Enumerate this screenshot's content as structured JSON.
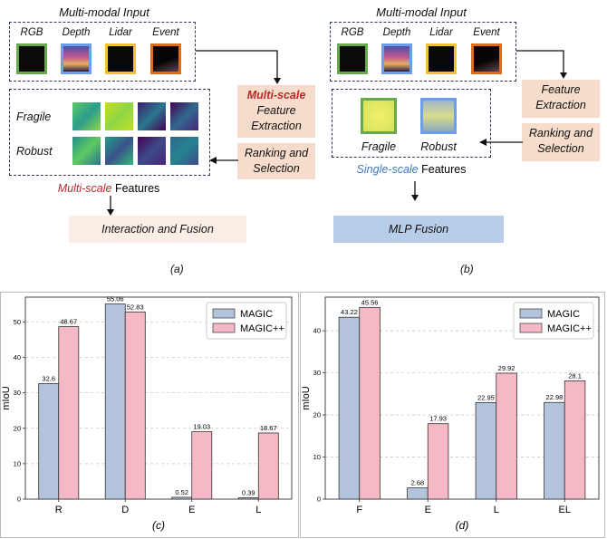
{
  "left_diagram": {
    "input_title": "Multi-modal Input",
    "modalities": [
      "RGB",
      "Depth",
      "Lidar",
      "Event"
    ],
    "rows": [
      "Fragile",
      "Robust"
    ],
    "extraction_word": "Multi-scale",
    "extraction_rest": "Feature Extraction",
    "ranking": "Ranking and Selection",
    "features_word": "Multi-scale",
    "features_rest": " Features",
    "fusion": "Interaction and Fusion",
    "caption": "(a)"
  },
  "right_diagram": {
    "input_title": "Multi-modal Input",
    "modalities": [
      "RGB",
      "Depth",
      "Lidar",
      "Event"
    ],
    "extraction": "Feature Extraction",
    "ranking": "Ranking and Selection",
    "fragile": "Fragile",
    "robust": "Robust",
    "features_word": "Single-scale",
    "features_rest": " Features",
    "fusion": "MLP Fusion",
    "caption": "(b)"
  },
  "colors": {
    "rgb": "#6aa84f",
    "depth": "#6d9eeb",
    "lidar": "#f1c232",
    "event": "#e06c1a",
    "magic": "#b4c3dc",
    "magicpp": "#f5b9c6",
    "red_accent": "#b8282a",
    "blue_accent": "#3d79b8"
  },
  "chart_data": [
    {
      "type": "bar",
      "caption": "(c)",
      "categories": [
        "R",
        "D",
        "E",
        "L"
      ],
      "series": [
        {
          "name": "MAGIC",
          "values": [
            32.6,
            55.06,
            0.52,
            0.39
          ]
        },
        {
          "name": "MAGIC++",
          "values": [
            48.67,
            52.83,
            19.03,
            18.67
          ]
        }
      ],
      "ylabel": "mIoU",
      "ylim": [
        0,
        57
      ],
      "yticks": [
        0,
        10,
        20,
        30,
        40,
        50
      ],
      "grid": true,
      "legend": "top-right"
    },
    {
      "type": "bar",
      "caption": "(d)",
      "categories": [
        "F",
        "E",
        "L",
        "EL"
      ],
      "series": [
        {
          "name": "MAGIC",
          "values": [
            43.22,
            2.68,
            22.95,
            22.98
          ]
        },
        {
          "name": "MAGIC++",
          "values": [
            45.56,
            17.93,
            29.92,
            28.1
          ]
        }
      ],
      "ylabel": "mIoU",
      "ylim": [
        0,
        48
      ],
      "yticks": [
        0,
        10,
        20,
        30,
        40
      ],
      "grid": true,
      "legend": "top-right"
    }
  ]
}
